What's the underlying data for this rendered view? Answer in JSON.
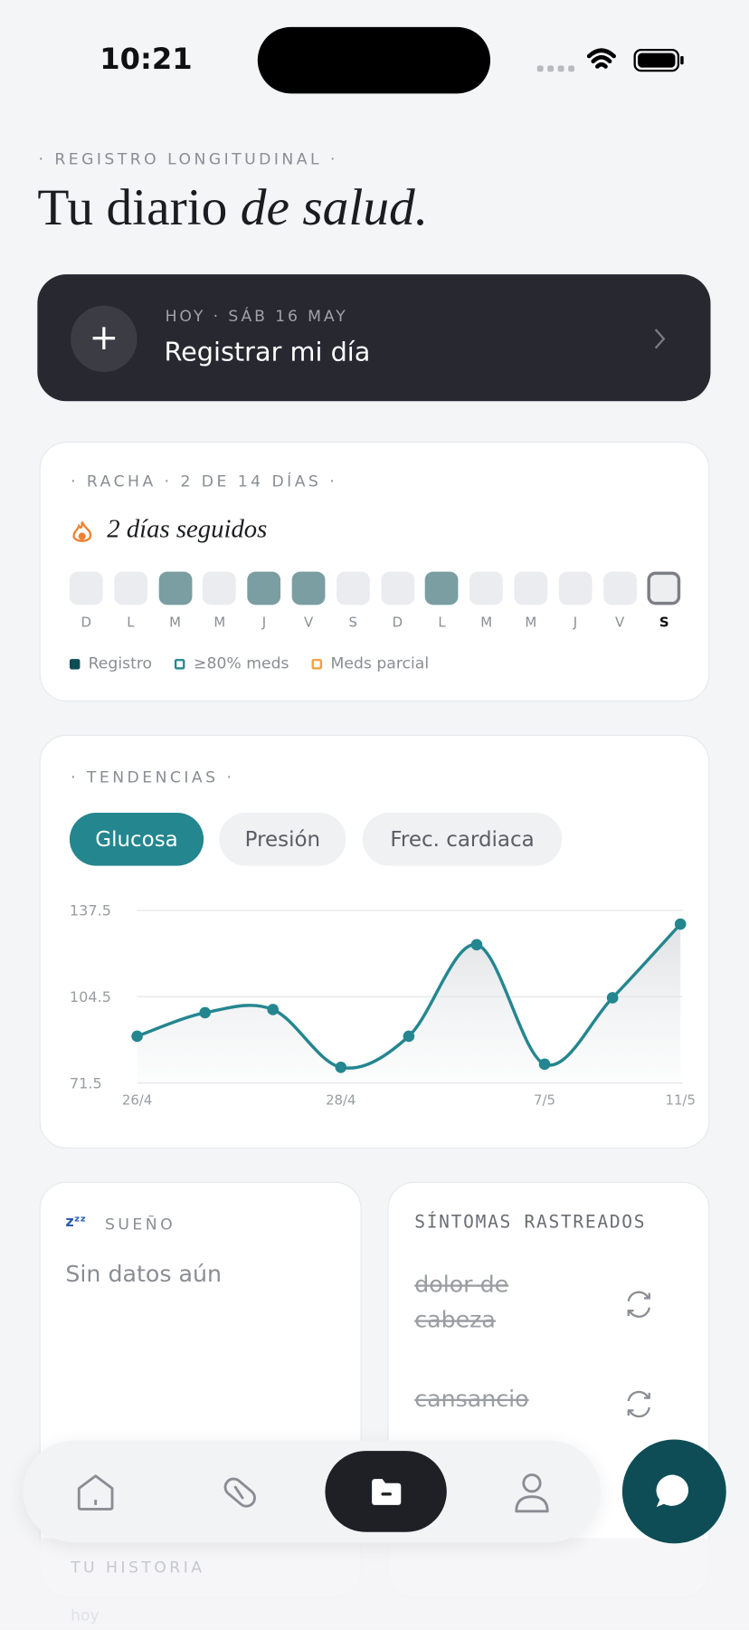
{
  "status_bar": {
    "time": "10:21"
  },
  "header": {
    "eyebrow": "· REGISTRO LONGITUDINAL ·",
    "title_plain": "Tu diario",
    "title_italic": "de salud."
  },
  "today_card": {
    "label": "HOY · SÁB 16 MAY",
    "action": "Registrar mi día"
  },
  "streak": {
    "eyebrow": "· RACHA · 2 DE 14 DÍAS ·",
    "headline": "2 días seguidos",
    "days": [
      {
        "label": "D",
        "logged": false
      },
      {
        "label": "L",
        "logged": false
      },
      {
        "label": "M",
        "logged": true
      },
      {
        "label": "M",
        "logged": false
      },
      {
        "label": "J",
        "logged": true
      },
      {
        "label": "V",
        "logged": true
      },
      {
        "label": "S",
        "logged": false
      },
      {
        "label": "D",
        "logged": false
      },
      {
        "label": "L",
        "logged": true
      },
      {
        "label": "M",
        "logged": false
      },
      {
        "label": "M",
        "logged": false
      },
      {
        "label": "J",
        "logged": false
      },
      {
        "label": "V",
        "logged": false
      },
      {
        "label": "S",
        "logged": false,
        "today": true
      }
    ],
    "legend": [
      {
        "name": "Registro",
        "color": "#0e4d55",
        "style": "filled"
      },
      {
        "name": "≥80% meds",
        "color": "#24868f",
        "style": "outline"
      },
      {
        "name": "Meds parcial",
        "color": "#f0a040",
        "style": "outline"
      }
    ]
  },
  "trends": {
    "eyebrow": "· TENDENCIAS ·",
    "tabs": [
      "Glucosa",
      "Presión",
      "Frec. cardiaca"
    ],
    "active_tab": 0
  },
  "chart_data": {
    "type": "line",
    "categories": [
      "26/4",
      null,
      null,
      "28/4",
      null,
      null,
      "7/5",
      null,
      "11/5"
    ],
    "series": [
      {
        "name": "Glucosa",
        "color": "#24868f",
        "values": [
          89.4,
          98.4,
          99.6,
          77.5,
          89.4,
          124.4,
          78.7,
          104.1,
          132.3
        ]
      }
    ],
    "ylim": [
      71.5,
      137.5
    ],
    "yticks": [
      71.5,
      104.5,
      137.5
    ],
    "grid": true
  },
  "sleep": {
    "title": "SUEÑO",
    "empty": "Sin datos aún"
  },
  "symptoms": {
    "title": "SÍNTOMAS RASTREADOS",
    "items": [
      "dolor de cabeza",
      "cansancio"
    ]
  },
  "history": {
    "title": "TU HISTORIA",
    "first": "hoy"
  }
}
